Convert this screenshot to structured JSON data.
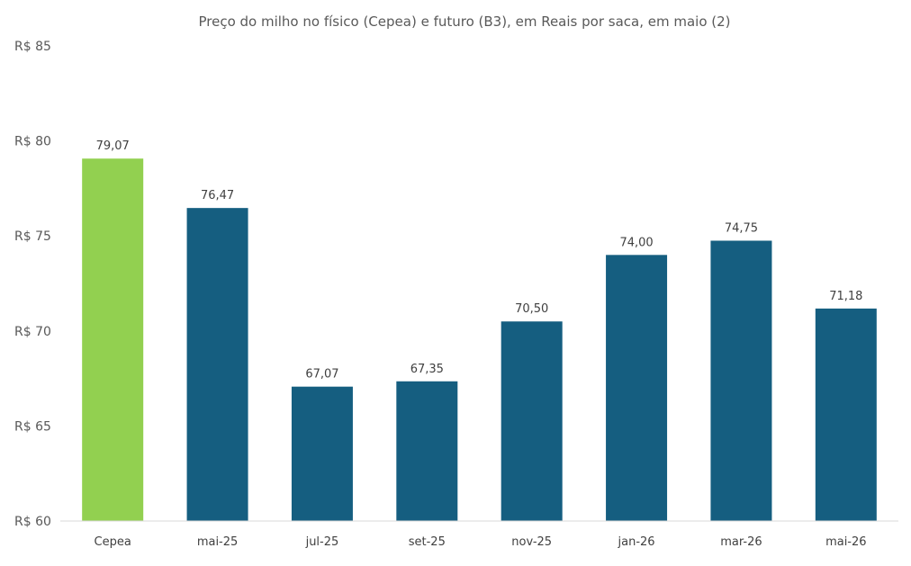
{
  "chart_data": {
    "type": "bar",
    "title": "Preço do milho no físico (Cepea) e futuro (B3), em Reais por saca, em maio (2)",
    "xlabel": "",
    "ylabel": "",
    "categories": [
      "Cepea",
      "mai-25",
      "jul-25",
      "set-25",
      "nov-25",
      "jan-26",
      "mar-26",
      "mai-26"
    ],
    "values": [
      79.07,
      76.47,
      67.07,
      67.35,
      70.5,
      74.0,
      74.75,
      71.18
    ],
    "data_labels": [
      "79,07",
      "76,47",
      "67,07",
      "67,35",
      "70,50",
      "74,00",
      "74,75",
      "71,18"
    ],
    "ylim": [
      60,
      85
    ],
    "y_ticks": [
      60,
      65,
      70,
      75,
      80,
      85
    ],
    "y_tick_labels": [
      "R$ 60",
      "R$ 65",
      "R$ 70",
      "R$ 75",
      "R$ 80",
      "R$ 85"
    ],
    "grid": false,
    "legend": "none",
    "colors": {
      "highlight": "#92d050",
      "bars": "#155e80"
    }
  }
}
